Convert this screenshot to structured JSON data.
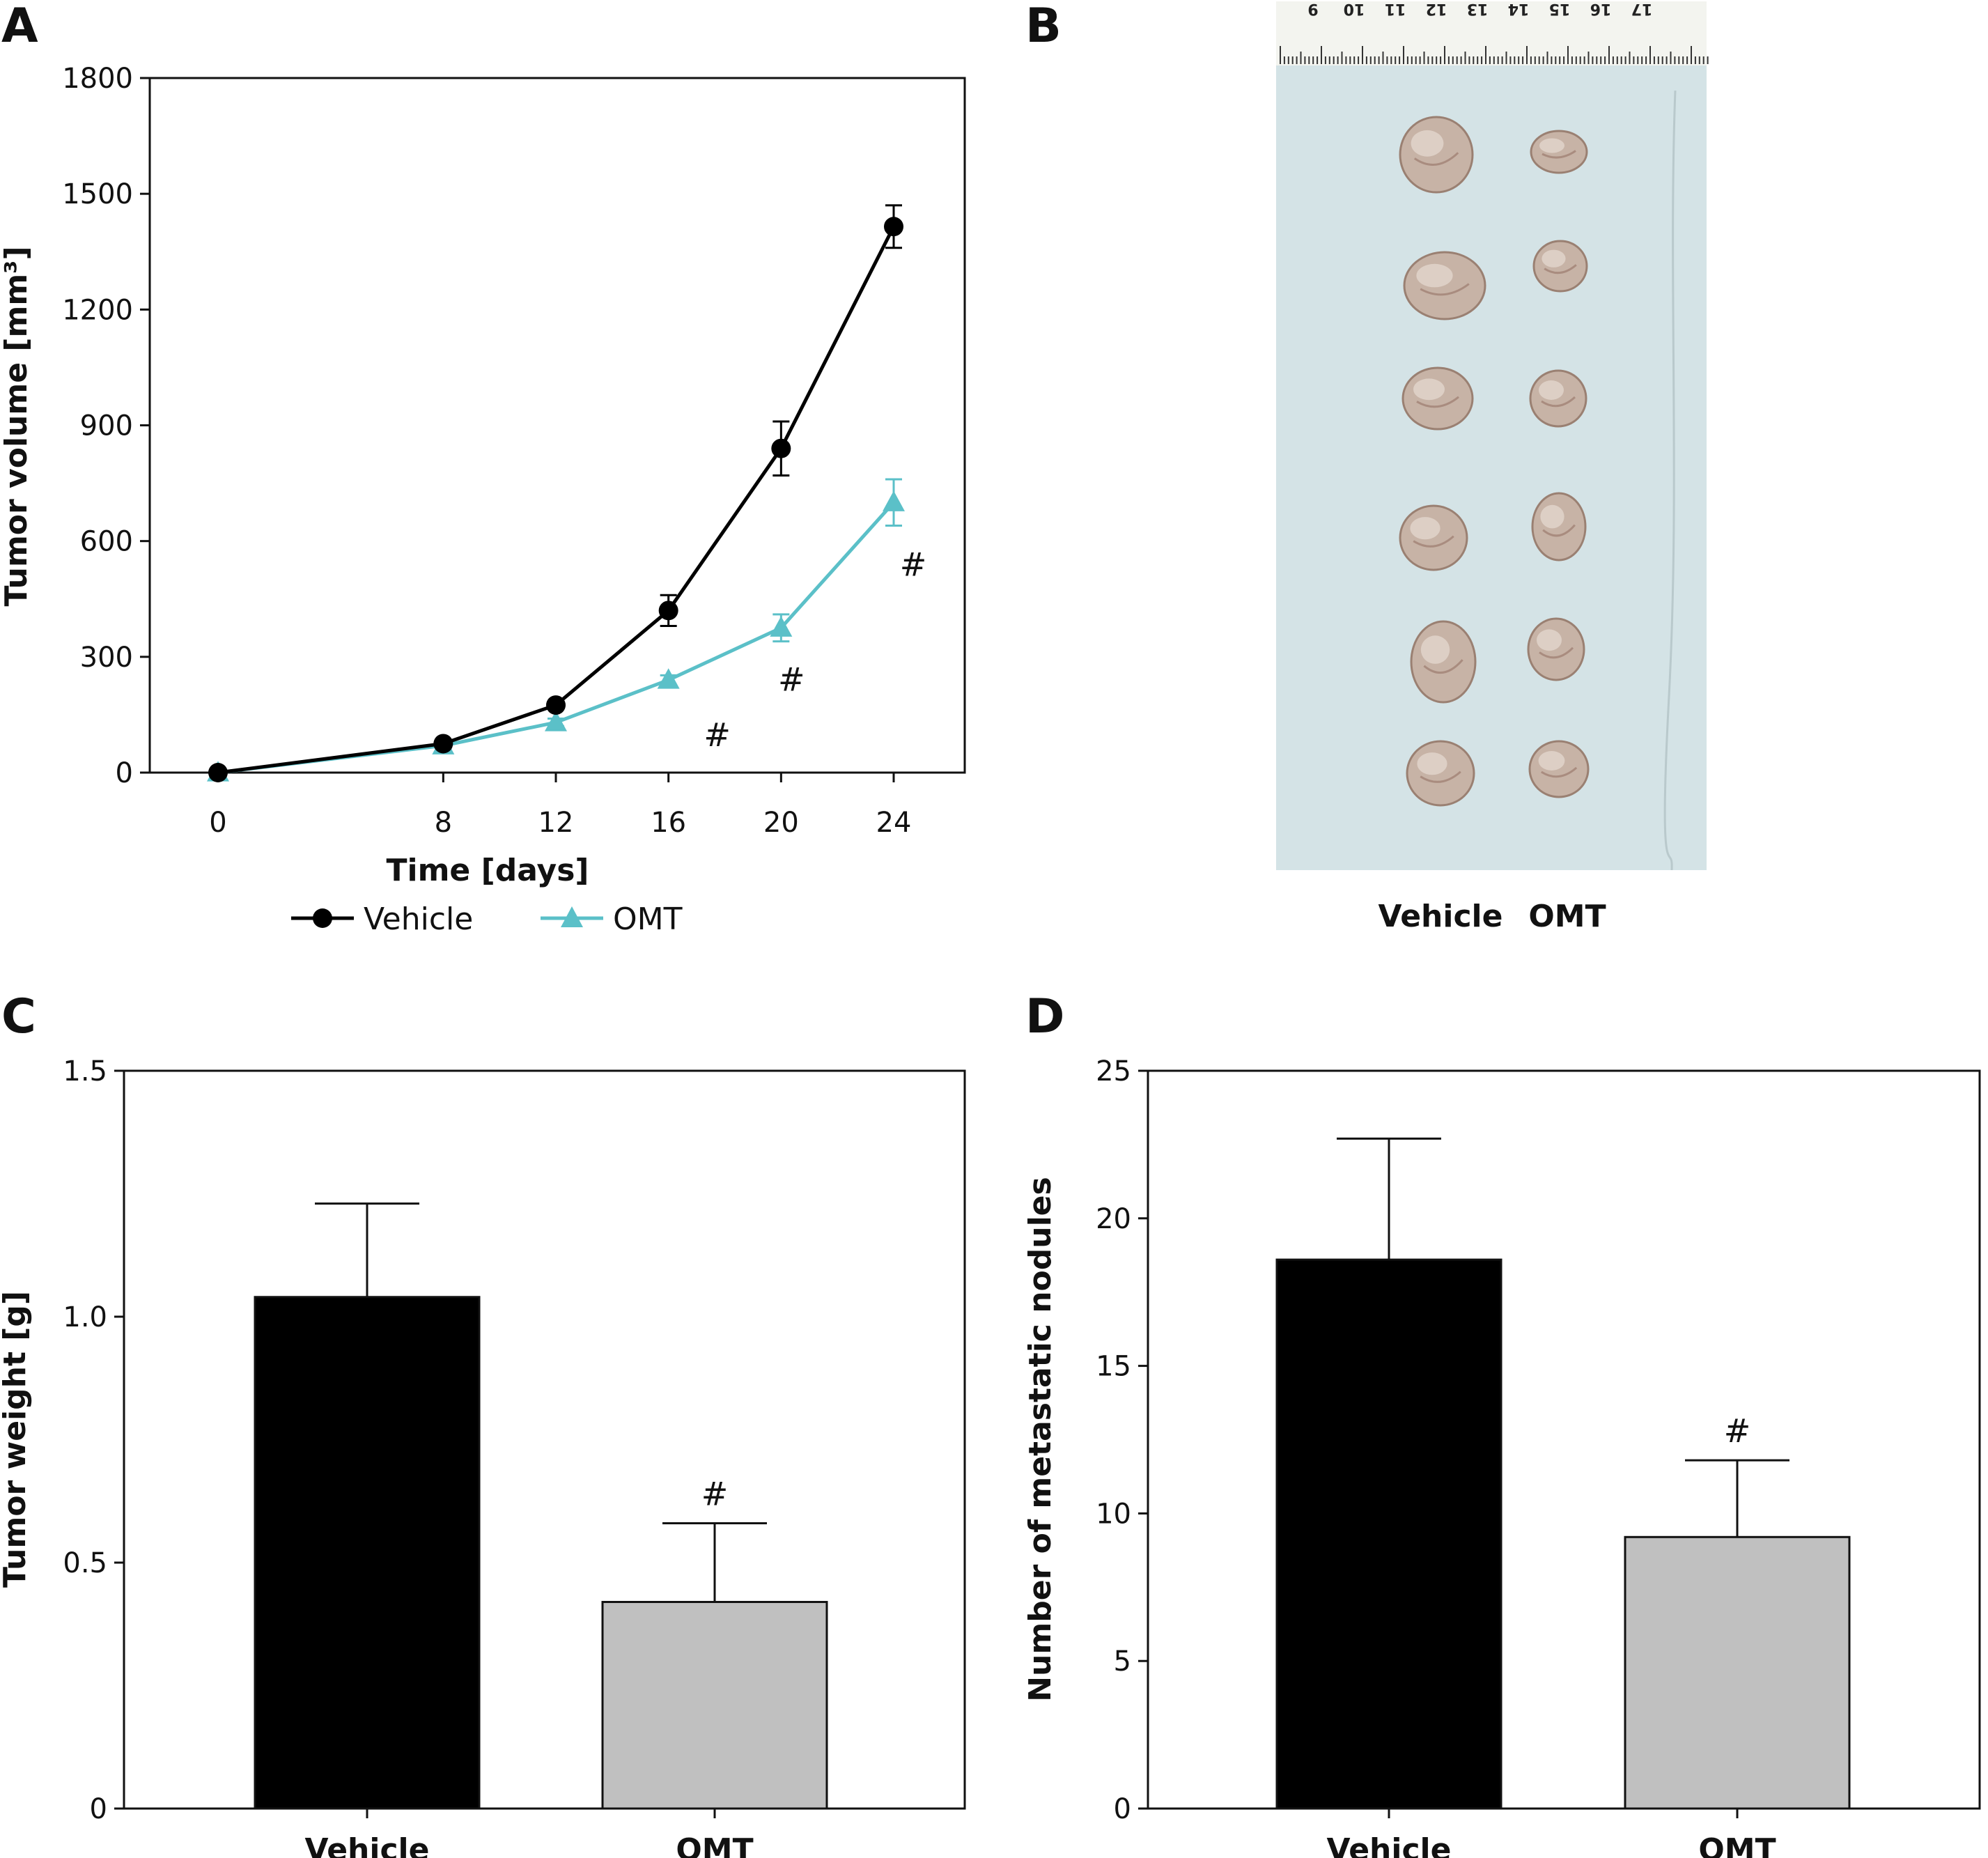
{
  "panels": {
    "A": {
      "letter": "A",
      "chart_data": {
        "type": "line",
        "xlabel": "Time [days]",
        "ylabel": "Tumor volume [mm³]",
        "x": [
          0,
          8,
          12,
          16,
          20,
          24
        ],
        "x_ticks": [
          "0",
          "8",
          "12",
          "16",
          "20",
          "24"
        ],
        "ylim": [
          0,
          1800
        ],
        "y_ticks": [
          "0",
          "300",
          "600",
          "900",
          "1200",
          "1500",
          "1800"
        ],
        "series": [
          {
            "name": "Vehicle",
            "color": "#000000",
            "marker": "circle",
            "values": [
              0,
              75,
              175,
              420,
              840,
              1415
            ],
            "errors": [
              0,
              10,
              10,
              40,
              70,
              55
            ]
          },
          {
            "name": "OMT",
            "color": "#5bc0c8",
            "marker": "triangle",
            "values": [
              0,
              70,
              130,
              240,
              375,
              700
            ],
            "errors": [
              0,
              8,
              10,
              12,
              35,
              60
            ]
          }
        ],
        "significance": [
          {
            "x": 16,
            "label": "#"
          },
          {
            "x": 20,
            "label": "#"
          },
          {
            "x": 24,
            "label": "#"
          }
        ],
        "legend_position": "bottom"
      }
    },
    "B": {
      "letter": "B",
      "ruler_numbers": [
        "9",
        "10",
        "11",
        "12",
        "13",
        "14",
        "15",
        "16",
        "17"
      ],
      "labels": [
        "Vehicle",
        "OMT"
      ]
    },
    "C": {
      "letter": "C",
      "chart_data": {
        "type": "bar",
        "categories": [
          "Vehicle",
          "OMT"
        ],
        "values": [
          1.04,
          0.42
        ],
        "errors": [
          0.19,
          0.16
        ],
        "colors": [
          "#000000",
          "#c0c0c0"
        ],
        "ylabel": "Tumor weight [g]",
        "ylim": [
          0,
          1.5
        ],
        "y_ticks": [
          "0",
          "0.5",
          "1.0",
          "1.5"
        ],
        "significance": [
          "",
          "#"
        ]
      }
    },
    "D": {
      "letter": "D",
      "chart_data": {
        "type": "bar",
        "categories": [
          "Vehicle",
          "OMT"
        ],
        "values": [
          18.6,
          9.2
        ],
        "errors": [
          4.1,
          2.6
        ],
        "colors": [
          "#000000",
          "#c0c0c0"
        ],
        "ylabel": "Number of metastatic nodules",
        "ylim": [
          0,
          25
        ],
        "y_ticks": [
          "0",
          "5",
          "10",
          "15",
          "20",
          "25"
        ],
        "significance": [
          "",
          "#"
        ]
      }
    }
  }
}
